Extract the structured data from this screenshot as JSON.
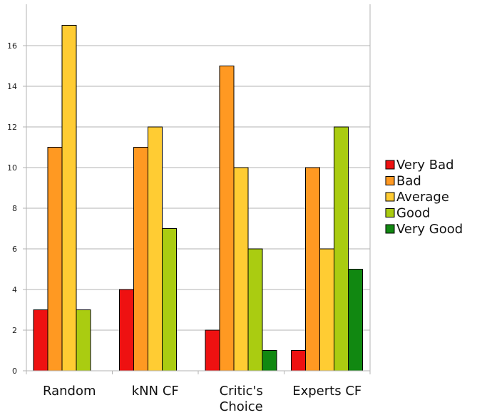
{
  "chart_data": {
    "type": "bar",
    "categories": [
      [
        "Random"
      ],
      [
        "kNN CF"
      ],
      [
        "Critic's",
        "Choice"
      ],
      [
        "Experts CF"
      ]
    ],
    "series": [
      {
        "name": "Very Bad",
        "color": "#ee1111",
        "values": [
          3,
          4,
          2,
          1
        ]
      },
      {
        "name": "Bad",
        "color": "#ff9922",
        "values": [
          11,
          11,
          15,
          10
        ]
      },
      {
        "name": "Average",
        "color": "#ffcc33",
        "values": [
          17,
          12,
          10,
          6
        ]
      },
      {
        "name": "Good",
        "color": "#aacc11",
        "values": [
          3,
          7,
          6,
          12
        ]
      },
      {
        "name": "Very Good",
        "color": "#118811",
        "values": [
          0,
          0,
          1,
          5
        ]
      }
    ],
    "ylim": [
      0,
      18
    ],
    "yticks": [
      0,
      2,
      4,
      6,
      8,
      10,
      12,
      14,
      16
    ],
    "grid": true,
    "legend_position": "right"
  }
}
